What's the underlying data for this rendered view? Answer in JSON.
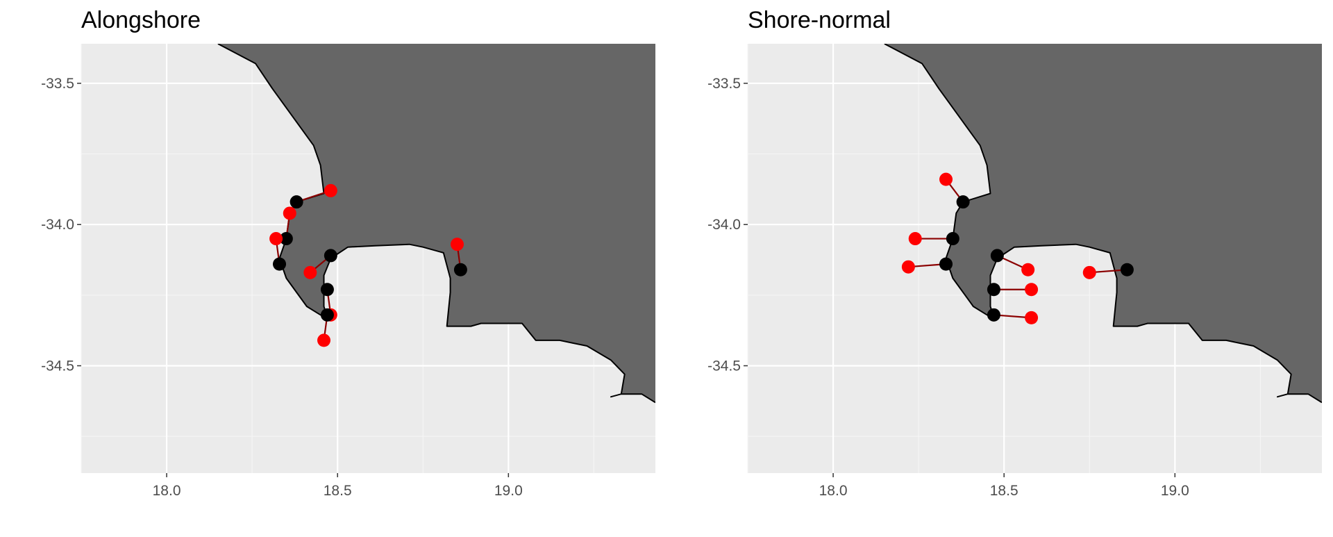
{
  "colors": {
    "panel_background": "#ebebeb",
    "grid_major": "#ffffff",
    "grid_minor": "#f5f5f5",
    "land_fill": "#666666",
    "coastline": "#000000",
    "site_point": "#000000",
    "offset_point": "#ff0000",
    "connector": "#8b0000"
  },
  "axes": {
    "x_ticks": [
      "18.0",
      "18.5",
      "19.0"
    ],
    "y_ticks": [
      "-33.5",
      "-34.0",
      "-34.5"
    ],
    "x_range": [
      17.75,
      19.43
    ],
    "y_range": [
      -34.88,
      -33.36
    ]
  },
  "coastline": [
    [
      18.15,
      -33.36
    ],
    [
      18.26,
      -33.43
    ],
    [
      18.31,
      -33.52
    ],
    [
      18.43,
      -33.72
    ],
    [
      18.45,
      -33.79
    ],
    [
      18.46,
      -33.89
    ],
    [
      18.38,
      -33.92
    ],
    [
      18.36,
      -33.96
    ],
    [
      18.35,
      -34.05
    ],
    [
      18.33,
      -34.12
    ],
    [
      18.35,
      -34.19
    ],
    [
      18.41,
      -34.29
    ],
    [
      18.45,
      -34.32
    ],
    [
      18.47,
      -34.33
    ],
    [
      18.46,
      -34.29
    ],
    [
      18.46,
      -34.18
    ],
    [
      18.48,
      -34.12
    ],
    [
      18.53,
      -34.08
    ],
    [
      18.61,
      -34.075
    ],
    [
      18.71,
      -34.07
    ],
    [
      18.75,
      -34.08
    ],
    [
      18.81,
      -34.1
    ],
    [
      18.83,
      -34.19
    ],
    [
      18.83,
      -34.24
    ],
    [
      18.82,
      -34.36
    ],
    [
      18.89,
      -34.36
    ],
    [
      18.92,
      -34.35
    ],
    [
      19.04,
      -34.35
    ],
    [
      19.08,
      -34.41
    ],
    [
      19.15,
      -34.41
    ],
    [
      19.19,
      -34.42
    ],
    [
      19.23,
      -34.43
    ],
    [
      19.3,
      -34.48
    ],
    [
      19.34,
      -34.53
    ],
    [
      19.33,
      -34.6
    ],
    [
      19.3,
      -34.61
    ],
    [
      19.33,
      -34.6
    ],
    [
      19.39,
      -34.6
    ],
    [
      19.43,
      -34.63
    ]
  ],
  "panels": [
    {
      "title": "Alongshore",
      "pairs": [
        {
          "site": [
            18.38,
            -33.92
          ],
          "offset": [
            18.48,
            -33.88
          ]
        },
        {
          "site": [
            18.35,
            -34.05
          ],
          "offset": [
            18.36,
            -33.96
          ]
        },
        {
          "site": [
            18.33,
            -34.14
          ],
          "offset": [
            18.32,
            -34.05
          ]
        },
        {
          "site": [
            18.48,
            -34.11
          ],
          "offset": [
            18.42,
            -34.17
          ]
        },
        {
          "site": [
            18.47,
            -34.23
          ],
          "offset": [
            18.48,
            -34.32
          ]
        },
        {
          "site": [
            18.47,
            -34.32
          ],
          "offset": [
            18.46,
            -34.41
          ]
        },
        {
          "site": [
            18.86,
            -34.16
          ],
          "offset": [
            18.85,
            -34.07
          ]
        }
      ]
    },
    {
      "title": "Shore-normal",
      "pairs": [
        {
          "site": [
            18.38,
            -33.92
          ],
          "offset": [
            18.33,
            -33.84
          ]
        },
        {
          "site": [
            18.35,
            -34.05
          ],
          "offset": [
            18.24,
            -34.05
          ]
        },
        {
          "site": [
            18.33,
            -34.14
          ],
          "offset": [
            18.22,
            -34.15
          ]
        },
        {
          "site": [
            18.48,
            -34.11
          ],
          "offset": [
            18.57,
            -34.16
          ]
        },
        {
          "site": [
            18.47,
            -34.23
          ],
          "offset": [
            18.58,
            -34.23
          ]
        },
        {
          "site": [
            18.47,
            -34.32
          ],
          "offset": [
            18.58,
            -34.33
          ]
        },
        {
          "site": [
            18.86,
            -34.16
          ],
          "offset": [
            18.75,
            -34.17
          ]
        }
      ]
    }
  ]
}
